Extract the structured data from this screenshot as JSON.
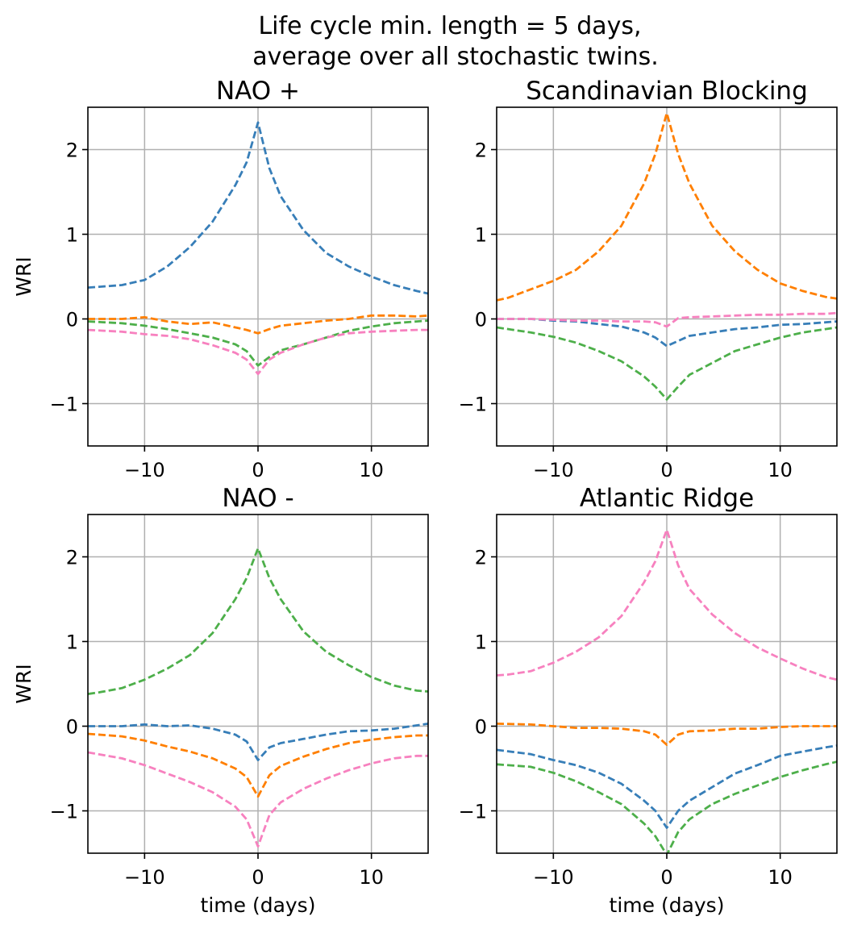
{
  "figure": {
    "suptitle_line1": "Life cycle min. length = 5 days,",
    "suptitle_line2": "average over all stochastic twins."
  },
  "colors": {
    "series_1": "#377eb8",
    "series_2": "#ff7f00",
    "series_3": "#4daf4a",
    "series_4": "#f781bf",
    "grid": "#b0b0b0"
  },
  "chart_data": [
    {
      "type": "line",
      "title": "NAO +",
      "xlabel": "",
      "ylabel": "WRI",
      "xlim": [
        -15,
        15
      ],
      "ylim": [
        -1.5,
        2.5
      ],
      "xticks": [
        -10,
        0,
        10
      ],
      "yticks": [
        -1,
        0,
        1,
        2
      ],
      "grid": true,
      "linestyle": "dashed",
      "series": [
        {
          "color": "#377eb8",
          "x": [
            -15,
            -14,
            -12,
            -10,
            -8,
            -6,
            -4,
            -2,
            -1,
            0,
            1,
            2,
            4,
            6,
            8,
            10,
            12,
            14,
            15
          ],
          "y": [
            0.37,
            0.38,
            0.4,
            0.46,
            0.62,
            0.85,
            1.15,
            1.58,
            1.85,
            2.32,
            1.78,
            1.45,
            1.05,
            0.78,
            0.62,
            0.5,
            0.4,
            0.33,
            0.3
          ]
        },
        {
          "color": "#ff7f00",
          "x": [
            -15,
            -12,
            -10,
            -8,
            -6,
            -4,
            -2,
            -1,
            0,
            1,
            2,
            4,
            6,
            8,
            10,
            12,
            14,
            15
          ],
          "y": [
            0.0,
            0.0,
            0.02,
            -0.03,
            -0.06,
            -0.04,
            -0.1,
            -0.13,
            -0.17,
            -0.12,
            -0.08,
            -0.05,
            -0.02,
            0.0,
            0.04,
            0.04,
            0.03,
            0.04
          ]
        },
        {
          "color": "#4daf4a",
          "x": [
            -15,
            -12,
            -10,
            -8,
            -6,
            -4,
            -2,
            -1,
            0,
            1,
            2,
            4,
            6,
            8,
            10,
            12,
            14,
            15
          ],
          "y": [
            -0.03,
            -0.05,
            -0.08,
            -0.12,
            -0.17,
            -0.22,
            -0.3,
            -0.38,
            -0.55,
            -0.45,
            -0.37,
            -0.3,
            -0.22,
            -0.14,
            -0.09,
            -0.05,
            -0.03,
            -0.02
          ]
        },
        {
          "color": "#f781bf",
          "x": [
            -15,
            -12,
            -10,
            -8,
            -6,
            -4,
            -2,
            -1,
            0,
            1,
            2,
            4,
            6,
            8,
            10,
            12,
            14,
            15
          ],
          "y": [
            -0.13,
            -0.15,
            -0.18,
            -0.2,
            -0.24,
            -0.31,
            -0.4,
            -0.48,
            -0.65,
            -0.48,
            -0.4,
            -0.3,
            -0.22,
            -0.17,
            -0.15,
            -0.14,
            -0.13,
            -0.13
          ]
        }
      ]
    },
    {
      "type": "line",
      "title": "Scandinavian Blocking",
      "xlabel": "",
      "ylabel": "",
      "xlim": [
        -15,
        15
      ],
      "ylim": [
        -1.5,
        2.5
      ],
      "xticks": [
        -10,
        0,
        10
      ],
      "yticks": [
        -1,
        0,
        1,
        2
      ],
      "grid": true,
      "linestyle": "dashed",
      "series": [
        {
          "color": "#377eb8",
          "x": [
            -15,
            -12,
            -10,
            -8,
            -6,
            -4,
            -2,
            -1,
            0,
            1,
            2,
            4,
            6,
            8,
            10,
            12,
            14,
            15
          ],
          "y": [
            0.0,
            0.0,
            -0.02,
            -0.03,
            -0.06,
            -0.09,
            -0.16,
            -0.22,
            -0.32,
            -0.26,
            -0.2,
            -0.16,
            -0.12,
            -0.1,
            -0.07,
            -0.06,
            -0.04,
            -0.03
          ]
        },
        {
          "color": "#ff7f00",
          "x": [
            -15,
            -14,
            -12,
            -10,
            -8,
            -6,
            -4,
            -2,
            -1,
            0,
            1,
            2,
            4,
            6,
            8,
            10,
            12,
            14,
            15
          ],
          "y": [
            0.22,
            0.25,
            0.35,
            0.45,
            0.58,
            0.8,
            1.1,
            1.6,
            1.95,
            2.43,
            1.95,
            1.6,
            1.1,
            0.8,
            0.58,
            0.42,
            0.33,
            0.26,
            0.24
          ]
        },
        {
          "color": "#4daf4a",
          "x": [
            -15,
            -12,
            -10,
            -8,
            -6,
            -4,
            -2,
            -1,
            0,
            1,
            2,
            4,
            6,
            8,
            10,
            12,
            14,
            15
          ],
          "y": [
            -0.1,
            -0.16,
            -0.21,
            -0.28,
            -0.38,
            -0.5,
            -0.68,
            -0.8,
            -0.95,
            -0.8,
            -0.66,
            -0.52,
            -0.38,
            -0.3,
            -0.22,
            -0.16,
            -0.12,
            -0.1
          ]
        },
        {
          "color": "#f781bf",
          "x": [
            -15,
            -12,
            -10,
            -8,
            -6,
            -4,
            -2,
            -1,
            0,
            1,
            2,
            4,
            6,
            8,
            10,
            12,
            14,
            15
          ],
          "y": [
            0.0,
            0.0,
            -0.01,
            -0.02,
            -0.02,
            -0.03,
            -0.03,
            -0.04,
            -0.09,
            0.01,
            0.02,
            0.03,
            0.04,
            0.05,
            0.05,
            0.06,
            0.06,
            0.07
          ]
        }
      ]
    },
    {
      "type": "line",
      "title": "NAO -",
      "xlabel": "time (days)",
      "ylabel": "WRI",
      "xlim": [
        -15,
        15
      ],
      "ylim": [
        -1.5,
        2.5
      ],
      "xticks": [
        -10,
        0,
        10
      ],
      "yticks": [
        -1,
        0,
        1,
        2
      ],
      "grid": true,
      "linestyle": "dashed",
      "series": [
        {
          "color": "#377eb8",
          "x": [
            -15,
            -12,
            -10,
            -8,
            -6,
            -4,
            -2,
            -1,
            0,
            1,
            2,
            4,
            6,
            8,
            10,
            12,
            14,
            15
          ],
          "y": [
            0.0,
            0.0,
            0.02,
            0.0,
            0.01,
            -0.03,
            -0.1,
            -0.18,
            -0.4,
            -0.25,
            -0.2,
            -0.15,
            -0.1,
            -0.06,
            -0.05,
            -0.03,
            0.01,
            0.03
          ]
        },
        {
          "color": "#ff7f00",
          "x": [
            -15,
            -12,
            -10,
            -8,
            -6,
            -4,
            -2,
            -1,
            0,
            1,
            2,
            4,
            6,
            8,
            10,
            12,
            14,
            15
          ],
          "y": [
            -0.09,
            -0.12,
            -0.17,
            -0.24,
            -0.3,
            -0.38,
            -0.5,
            -0.6,
            -0.83,
            -0.58,
            -0.47,
            -0.36,
            -0.27,
            -0.2,
            -0.16,
            -0.13,
            -0.11,
            -0.11
          ]
        },
        {
          "color": "#4daf4a",
          "x": [
            -15,
            -14,
            -12,
            -10,
            -8,
            -6,
            -4,
            -2,
            -1,
            0,
            1,
            2,
            4,
            6,
            8,
            10,
            12,
            14,
            15
          ],
          "y": [
            0.38,
            0.4,
            0.45,
            0.55,
            0.68,
            0.84,
            1.1,
            1.5,
            1.75,
            2.1,
            1.75,
            1.5,
            1.12,
            0.88,
            0.72,
            0.58,
            0.48,
            0.42,
            0.41
          ]
        },
        {
          "color": "#f781bf",
          "x": [
            -15,
            -12,
            -10,
            -8,
            -6,
            -4,
            -2,
            -1,
            0,
            1,
            2,
            4,
            6,
            8,
            10,
            12,
            14,
            15
          ],
          "y": [
            -0.31,
            -0.38,
            -0.46,
            -0.56,
            -0.66,
            -0.78,
            -0.95,
            -1.1,
            -1.42,
            -1.05,
            -0.9,
            -0.74,
            -0.62,
            -0.52,
            -0.44,
            -0.38,
            -0.35,
            -0.35
          ]
        }
      ]
    },
    {
      "type": "line",
      "title": "Atlantic Ridge",
      "xlabel": "time (days)",
      "ylabel": "",
      "xlim": [
        -15,
        15
      ],
      "ylim": [
        -1.5,
        2.5
      ],
      "xticks": [
        -10,
        0,
        10
      ],
      "yticks": [
        -1,
        0,
        1,
        2
      ],
      "grid": true,
      "linestyle": "dashed",
      "series": [
        {
          "color": "#377eb8",
          "x": [
            -15,
            -12,
            -10,
            -8,
            -6,
            -4,
            -2,
            -1,
            0,
            1,
            2,
            4,
            6,
            8,
            10,
            12,
            14,
            15
          ],
          "y": [
            -0.28,
            -0.33,
            -0.4,
            -0.46,
            -0.55,
            -0.68,
            -0.88,
            -1.0,
            -1.2,
            -1.0,
            -0.88,
            -0.72,
            -0.56,
            -0.46,
            -0.35,
            -0.3,
            -0.25,
            -0.23
          ]
        },
        {
          "color": "#ff7f00",
          "x": [
            -15,
            -12,
            -10,
            -8,
            -6,
            -4,
            -2,
            -1,
            0,
            1,
            2,
            4,
            6,
            8,
            10,
            12,
            14,
            15
          ],
          "y": [
            0.03,
            0.02,
            0.0,
            -0.02,
            -0.02,
            -0.03,
            -0.06,
            -0.1,
            -0.22,
            -0.1,
            -0.06,
            -0.05,
            -0.03,
            -0.03,
            -0.01,
            0.0,
            0.0,
            0.0
          ]
        },
        {
          "color": "#4daf4a",
          "x": [
            -15,
            -12,
            -10,
            -8,
            -6,
            -4,
            -2,
            -1,
            0,
            1,
            2,
            4,
            6,
            8,
            10,
            12,
            14,
            15
          ],
          "y": [
            -0.45,
            -0.48,
            -0.55,
            -0.65,
            -0.78,
            -0.92,
            -1.15,
            -1.3,
            -1.52,
            -1.25,
            -1.1,
            -0.92,
            -0.8,
            -0.7,
            -0.6,
            -0.52,
            -0.45,
            -0.42
          ]
        },
        {
          "color": "#f781bf",
          "x": [
            -15,
            -14,
            -12,
            -10,
            -8,
            -6,
            -4,
            -2,
            -1,
            0,
            1,
            2,
            4,
            6,
            8,
            10,
            12,
            14,
            15
          ],
          "y": [
            0.6,
            0.61,
            0.65,
            0.75,
            0.88,
            1.05,
            1.3,
            1.7,
            1.95,
            2.32,
            1.9,
            1.62,
            1.32,
            1.1,
            0.93,
            0.8,
            0.68,
            0.58,
            0.55
          ]
        }
      ]
    }
  ]
}
